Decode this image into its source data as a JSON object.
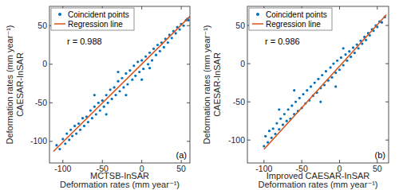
{
  "chart_data": [
    {
      "type": "scatter",
      "xlabel": [
        "MCTSB-InSAR",
        "Deformation rates (mm year⁻¹)"
      ],
      "ylabel": [
        "Deformation rates (mm year⁻¹)",
        "CAESAR-InSAR"
      ],
      "annotations": [
        "r = 0.988",
        "(a)"
      ],
      "xlim": [
        -117,
        61
      ],
      "ylim": [
        -128,
        75
      ],
      "xticks": [
        -100,
        -50,
        0,
        50
      ],
      "yticks": [
        -100,
        -50,
        0,
        50
      ],
      "grid": false,
      "legend": "top-left",
      "series": [
        {
          "name": "Coincident points",
          "type": "scatter",
          "color": "#0072BD",
          "marker": "point",
          "x": [
            -108,
            -104,
            -100,
            -97,
            -95,
            -92,
            -90,
            -88,
            -85,
            -83,
            -80,
            -78,
            -75,
            -73,
            -70,
            -68,
            -65,
            -63,
            -60,
            -58,
            -55,
            -53,
            -50,
            -48,
            -45,
            -43,
            -40,
            -38,
            -35,
            -33,
            -30,
            -28,
            -25,
            -23,
            -20,
            -18,
            -15,
            -12,
            -10,
            -8,
            -5,
            -3,
            0,
            2,
            5,
            8,
            10,
            13,
            15,
            18,
            20,
            23,
            25,
            28,
            30,
            33,
            35,
            38,
            40,
            43,
            45,
            48,
            50,
            53,
            56,
            58,
            59,
            -60,
            -30,
            -20,
            0,
            10,
            -45
          ],
          "values": [
            -105,
            -110,
            -97,
            -103,
            -90,
            -98,
            -85,
            -93,
            -80,
            -90,
            -77,
            -85,
            -70,
            -80,
            -68,
            -75,
            -60,
            -70,
            -55,
            -65,
            -50,
            -60,
            -47,
            -55,
            -40,
            -50,
            -33,
            -45,
            -30,
            -40,
            -22,
            -35,
            -18,
            -30,
            -12,
            -26,
            -8,
            -20,
            -2,
            -15,
            3,
            -10,
            5,
            -6,
            10,
            0,
            15,
            5,
            20,
            12,
            25,
            17,
            28,
            22,
            33,
            28,
            38,
            34,
            43,
            40,
            48,
            45,
            52,
            50,
            57,
            59,
            57,
            -40,
            -10,
            -40,
            -20,
            -5,
            -65
          ]
        },
        {
          "name": "Regression line",
          "type": "line",
          "color": "#D95319",
          "line_style": "solid",
          "x": [
            -112,
            61
          ],
          "values": [
            -113,
            62
          ]
        }
      ]
    },
    {
      "type": "scatter",
      "xlabel": [
        "Improved CAESAR-InSAR",
        "Deformation rates (mm year⁻¹)"
      ],
      "ylabel": [
        "Deformation rates (mm year⁻¹)",
        "CAESAR-InSAR"
      ],
      "annotations": [
        "r = 0.986",
        "(b)"
      ],
      "xlim": [
        -122,
        65
      ],
      "ylim": [
        -130,
        75
      ],
      "xticks": [
        -100,
        -50,
        0,
        50
      ],
      "yticks": [
        -100,
        -50,
        0,
        50
      ],
      "grid": false,
      "legend": "top-left",
      "series": [
        {
          "name": "Coincident points",
          "type": "scatter",
          "color": "#0072BD",
          "marker": "point",
          "x": [
            -100,
            -98,
            -95,
            -93,
            -90,
            -88,
            -85,
            -83,
            -80,
            -78,
            -75,
            -73,
            -70,
            -68,
            -65,
            -63,
            -60,
            -58,
            -55,
            -53,
            -50,
            -48,
            -45,
            -43,
            -40,
            -38,
            -35,
            -33,
            -30,
            -28,
            -25,
            -23,
            -20,
            -18,
            -15,
            -12,
            -10,
            -8,
            -5,
            -3,
            0,
            2,
            5,
            8,
            10,
            13,
            15,
            18,
            20,
            23,
            25,
            28,
            30,
            33,
            35,
            38,
            40,
            43,
            45,
            48,
            50,
            53,
            56,
            60,
            -60,
            -25,
            -5,
            5,
            -80
          ],
          "values": [
            -108,
            -95,
            -103,
            -88,
            -97,
            -85,
            -92,
            -78,
            -86,
            -72,
            -80,
            -66,
            -75,
            -60,
            -72,
            -55,
            -66,
            -50,
            -62,
            -45,
            -58,
            -40,
            -52,
            -35,
            -48,
            -30,
            -42,
            -25,
            -38,
            -20,
            -32,
            -15,
            -28,
            -10,
            -22,
            -5,
            -18,
            0,
            -12,
            4,
            -8,
            8,
            -2,
            12,
            4,
            16,
            9,
            21,
            14,
            25,
            20,
            30,
            26,
            35,
            31,
            40,
            37,
            45,
            43,
            50,
            48,
            55,
            54,
            61,
            -35,
            -50,
            -30,
            20,
            -60
          ]
        },
        {
          "name": "Regression line",
          "type": "line",
          "color": "#D95319",
          "line_style": "solid",
          "x": [
            -100,
            62
          ],
          "values": [
            -112,
            64
          ]
        }
      ]
    }
  ]
}
